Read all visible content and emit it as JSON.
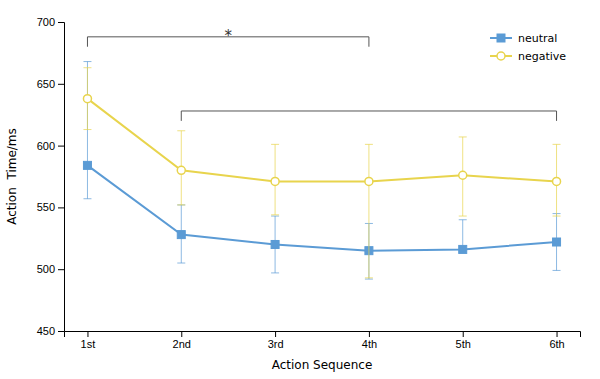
{
  "chart_data": {
    "type": "line",
    "x": [
      1,
      2,
      3,
      4,
      5,
      6
    ],
    "xlim": [
      0.75,
      6.25
    ],
    "xticks": [
      {
        "value": 1,
        "label": "1st"
      },
      {
        "value": 2,
        "label": "2nd"
      },
      {
        "value": 3,
        "label": "3rd"
      },
      {
        "value": 4,
        "label": "4th"
      },
      {
        "value": 5,
        "label": "5th"
      },
      {
        "value": 6,
        "label": "6th"
      }
    ],
    "series": [
      {
        "name": "neutral",
        "color": "#5B9BD5",
        "marker": "square",
        "values": [
          584,
          528,
          520,
          515,
          516,
          522
        ],
        "error_upper": [
          84,
          24,
          23,
          22,
          24,
          23
        ],
        "error_lower": [
          27,
          23,
          23,
          23,
          2,
          23
        ]
      },
      {
        "name": "negative",
        "color": "#E8D44D",
        "marker": "circle-open",
        "values": [
          638,
          580,
          571,
          571,
          576,
          571
        ],
        "error_upper": [
          25,
          32,
          30,
          30,
          31,
          30
        ],
        "error_lower": [
          25,
          28,
          27,
          78,
          33,
          28
        ]
      }
    ],
    "xlabel": "Action Sequence",
    "ylabel": "Action  Time/ms",
    "ylim": [
      450,
      700
    ],
    "yticks": [
      450,
      500,
      550,
      600,
      650,
      700
    ],
    "grid": false,
    "legend": "upper right",
    "brackets": [
      {
        "x1": 1,
        "x2": 4,
        "y": 688,
        "tick": 8
      },
      {
        "x1": 2,
        "x2": 6,
        "y": 628,
        "tick": 8
      }
    ],
    "annotations": [
      {
        "text": "*",
        "x": 2.5,
        "y": 690
      }
    ]
  }
}
